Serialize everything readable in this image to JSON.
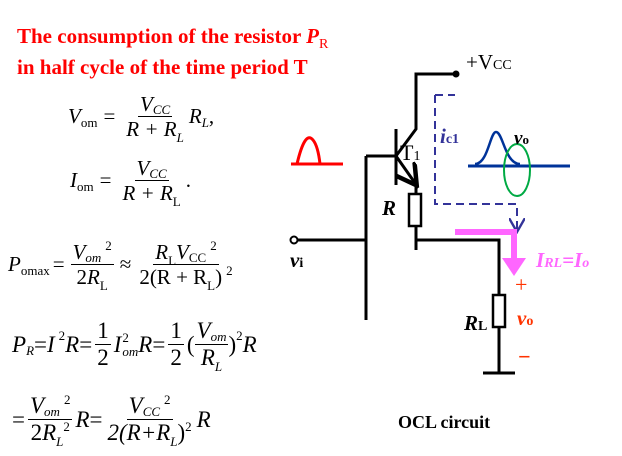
{
  "title": {
    "line1": "The consumption of the resistor ",
    "line1_symbol": "P",
    "line1_sub": "R",
    "line2": "in half cycle of the time period T"
  },
  "equations": {
    "vom": {
      "lhs": "V",
      "lhs_sub": "om",
      "eq": "=",
      "num": "V",
      "num_sub": "CC",
      "den": "R + R",
      "den_sub": "L",
      "tail": "R",
      "tail_sub": "L",
      "punct": ","
    },
    "iom": {
      "lhs": "I",
      "lhs_sub": "om",
      "eq": "=",
      "num": "V",
      "num_sub": "CC",
      "den": "R + R",
      "den_sub": "L",
      "punct": "."
    },
    "pomax": {
      "lhs": "P",
      "lhs_sub": "omax",
      "eq": "=",
      "num1": "V",
      "num1_sub": "om",
      "sq": "2",
      "den1": "2R",
      "den1_sub": "L",
      "approx": "≈",
      "num2": "R",
      "num2_sub": "L",
      "num2b": "V",
      "num2b_sub": "CC",
      "den2": "2(R + R",
      "den2_sub": "L",
      "den2_close": ")"
    },
    "pr": {
      "lhs": "P",
      "lhs_sub": "R",
      "eq": "=",
      "t1": "I",
      "sq": "2",
      "r": "R",
      "half_num": "1",
      "half_den": "2",
      "t2": "I",
      "t2_sub": "om",
      "num": "V",
      "num_sub": "om",
      "den": "R",
      "den_sub": "L",
      "open": "(",
      "close": ")"
    },
    "pr2": {
      "eq": "=",
      "num1": "V",
      "num1_sub": "om",
      "sq": "2",
      "den1": "2R",
      "den1_sub": "L",
      "r": "R",
      "num2": "V",
      "num2_sub": "CC",
      "den2": "2(R+R",
      "den2_sub": "L",
      "den2_close": ")"
    }
  },
  "circuit": {
    "vcc": "+V",
    "vcc_sub": "CC",
    "transistor": "T",
    "transistor_sub": "1",
    "r": "R",
    "rl": "R",
    "rl_sub": "L",
    "vi": "v",
    "vi_sub": "i",
    "ic1": "i",
    "ic1_sub": "c1",
    "vo_wave": "v",
    "vo_wave_sub": "o",
    "irl": "I",
    "irl_sub": "RL",
    "irl_eq": "=",
    "io": "I",
    "io_sub": "o",
    "plus": "+",
    "minus": "−",
    "vo": "v",
    "vo_sub": "o",
    "caption": "OCL circuit"
  },
  "colors": {
    "title": "#ff0000",
    "current": "#ff66ff",
    "dashed": "#333399",
    "wave": "#003399",
    "ellipse": "#00aa44",
    "polarity": "#ff3300"
  }
}
